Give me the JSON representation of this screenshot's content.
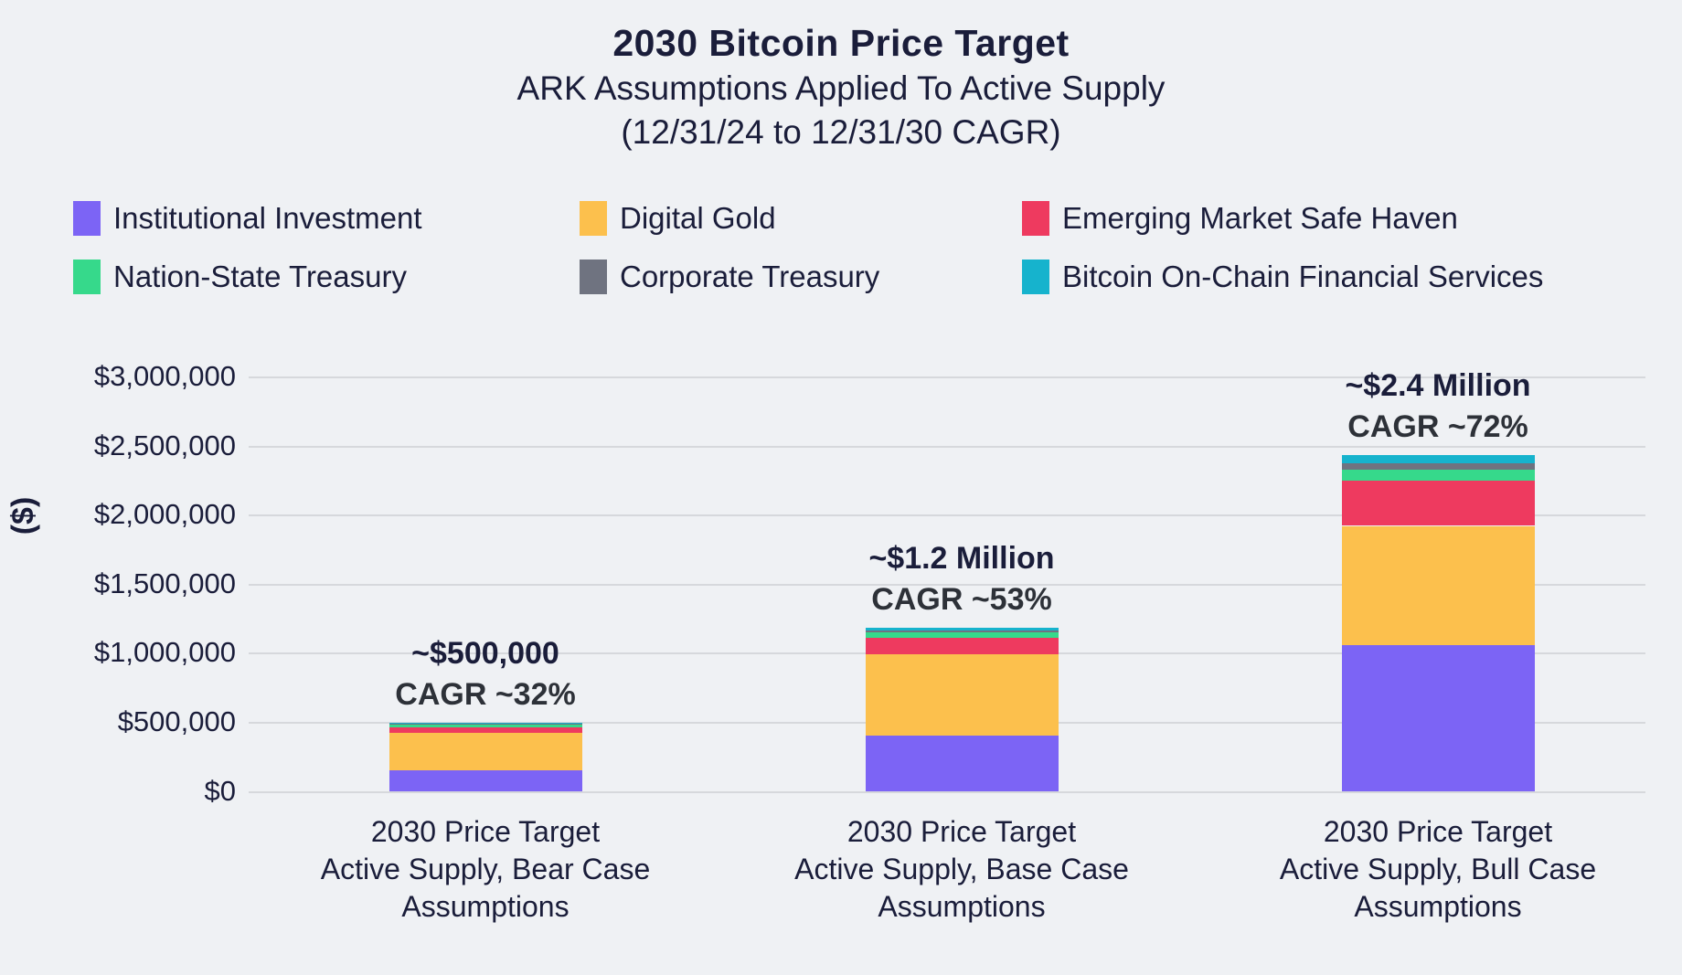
{
  "title": "2030 Bitcoin Price Target",
  "subtitle_line1": "ARK Assumptions Applied To Active Supply",
  "subtitle_line2": "(12/31/24 to 12/31/30 CAGR)",
  "colors": {
    "background": "#eff1f4",
    "text": "#1a1d3a",
    "cagr_text": "#2d3138",
    "gridline": "#d6d8dc"
  },
  "chart_data": {
    "type": "bar",
    "stacked": true,
    "title": "2030 Bitcoin Price Target",
    "subtitle": "ARK Assumptions Applied To Active Supply (12/31/24 to 12/31/30 CAGR)",
    "xlabel": "",
    "ylabel": "($)",
    "ylim": [
      0,
      3000000
    ],
    "grid": true,
    "legend_position": "top",
    "yticks": [
      {
        "value": 0,
        "label": "$0"
      },
      {
        "value": 500000,
        "label": "$500,000"
      },
      {
        "value": 1000000,
        "label": "$1,000,000"
      },
      {
        "value": 1500000,
        "label": "$1,500,000"
      },
      {
        "value": 2000000,
        "label": "$2,000,000"
      },
      {
        "value": 2500000,
        "label": "$2,500,000"
      },
      {
        "value": 3000000,
        "label": "$3,000,000"
      }
    ],
    "categories": [
      [
        "2030 Price Target",
        "Active Supply, Bear Case",
        "Assumptions"
      ],
      [
        "2030 Price Target",
        "Active Supply, Base Case",
        "Assumptions"
      ],
      [
        "2030 Price Target",
        "Active Supply, Bull Case",
        "Assumptions"
      ]
    ],
    "series": [
      {
        "name": "Institutional Investment",
        "color": "#7c64f5",
        "values": [
          155000,
          405000,
          1060000
        ]
      },
      {
        "name": "Digital Gold",
        "color": "#fcc04d",
        "values": [
          270000,
          590000,
          865000
        ]
      },
      {
        "name": "Emerging Market Safe Haven",
        "color": "#ee3a5f",
        "values": [
          40000,
          120000,
          330000
        ]
      },
      {
        "name": "Nation-State Treasury",
        "color": "#36d98b",
        "values": [
          20000,
          40000,
          80000
        ]
      },
      {
        "name": "Corporate Treasury",
        "color": "#6f7380",
        "values": [
          6000,
          15000,
          40000
        ]
      },
      {
        "name": "Bitcoin On-Chain Financial Services",
        "color": "#16b3cd",
        "values": [
          9000,
          20000,
          65000
        ]
      }
    ],
    "bar_totals_approx": [
      "~$500,000",
      "~$1.2 Million",
      "~$2.4 Million"
    ],
    "annotations": [
      {
        "line1": "~$500,000",
        "line2": "CAGR ~32%"
      },
      {
        "line1": "~$1.2 Million",
        "line2": "CAGR ~53%"
      },
      {
        "line1": "~$2.4 Million",
        "line2": "CAGR ~72%"
      }
    ],
    "legend_order": [
      0,
      1,
      2,
      3,
      4,
      5
    ]
  }
}
